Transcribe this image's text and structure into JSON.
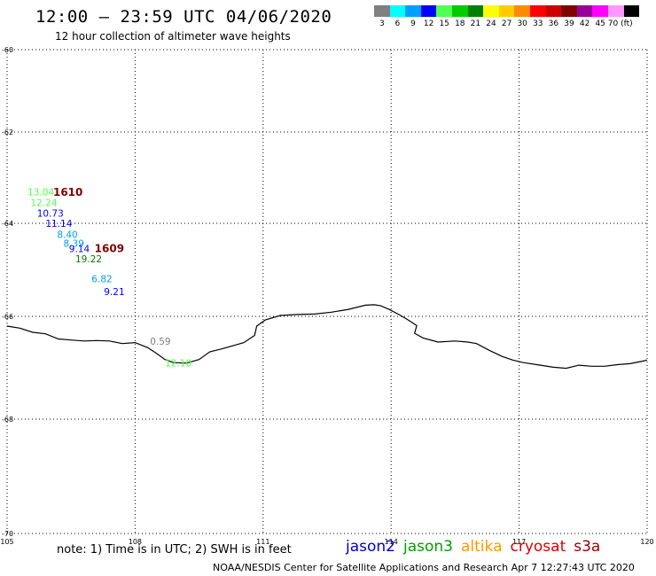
{
  "header": {
    "title": "12:00 – 23:59 UTC 04/06/2020",
    "subtitle": "12 hour collection of altimeter wave heights"
  },
  "legend": {
    "colors": [
      "#808080",
      "#00ffff",
      "#00a0ff",
      "#0000ff",
      "#50ff50",
      "#00cc00",
      "#008000",
      "#ffff00",
      "#ffcc00",
      "#ff8c00",
      "#ff0000",
      "#cc0000",
      "#800000",
      "#990099",
      "#ff00ff",
      "#ff99ff",
      "#000000"
    ],
    "labels": [
      "3",
      "6",
      "9",
      "12",
      "15",
      "18",
      "21",
      "24",
      "27",
      "30",
      "33",
      "36",
      "39",
      "42",
      "45",
      "70 (ft)"
    ],
    "unit": "(ft)"
  },
  "map": {
    "lon_ticks": [
      "105",
      "108",
      "111",
      "114",
      "117",
      "120"
    ],
    "lat_ticks": [
      "-60",
      "-62",
      "-64",
      "-66",
      "-68",
      "-70"
    ],
    "lon_range": [
      105,
      120
    ],
    "lat_range": [
      -60,
      -70
    ],
    "grid": "dotted",
    "observations": [
      {
        "text": "13.04",
        "lon": 105.48,
        "lat": -63.39,
        "color": "#50ff50"
      },
      {
        "text": "12.24",
        "lon": 105.55,
        "lat": -63.62,
        "color": "#50ff50"
      },
      {
        "text": "10.73",
        "lon": 105.7,
        "lat": -63.85,
        "color": "#0000ff"
      },
      {
        "text": "11.14",
        "lon": 105.9,
        "lat": -64.08,
        "color": "#0000ff"
      },
      {
        "text": "8.40",
        "lon": 106.17,
        "lat": -64.31,
        "color": "#00a0ff"
      },
      {
        "text": "8.39",
        "lon": 106.32,
        "lat": -64.5,
        "color": "#00a0ff"
      },
      {
        "text": "9.14",
        "lon": 106.45,
        "lat": -64.62,
        "color": "#0000ff"
      },
      {
        "text": "19.22",
        "lon": 106.6,
        "lat": -64.84,
        "color": "#008000"
      },
      {
        "text": "6.82",
        "lon": 106.98,
        "lat": -65.27,
        "color": "#00a0ff"
      },
      {
        "text": "9.21",
        "lon": 107.27,
        "lat": -65.54,
        "color": "#0000ff"
      },
      {
        "text": "0.59",
        "lon": 108.35,
        "lat": -66.55,
        "color": "#808080"
      },
      {
        "text": "12.10",
        "lon": 108.7,
        "lat": -66.97,
        "color": "#50ff50"
      }
    ],
    "tracks": [
      {
        "text": "1610",
        "lon": 106.08,
        "lat": -63.4,
        "color": "#800000"
      },
      {
        "text": "1609",
        "lon": 107.05,
        "lat": -64.62,
        "color": "#800000"
      }
    ],
    "coastline": [
      [
        105.0,
        -66.19
      ],
      [
        105.3,
        -66.23
      ],
      [
        105.6,
        -66.31
      ],
      [
        105.9,
        -66.34
      ],
      [
        106.2,
        -66.44
      ],
      [
        106.5,
        -66.46
      ],
      [
        106.8,
        -66.48
      ],
      [
        107.1,
        -66.47
      ],
      [
        107.4,
        -66.48
      ],
      [
        107.7,
        -66.53
      ],
      [
        108.0,
        -66.51
      ],
      [
        108.12,
        -66.55
      ],
      [
        108.3,
        -66.61
      ],
      [
        108.5,
        -66.72
      ],
      [
        108.7,
        -66.84
      ],
      [
        108.9,
        -66.9
      ],
      [
        109.2,
        -66.91
      ],
      [
        109.5,
        -66.84
      ],
      [
        109.75,
        -66.69
      ],
      [
        110.0,
        -66.64
      ],
      [
        110.3,
        -66.57
      ],
      [
        110.55,
        -66.51
      ],
      [
        110.8,
        -66.37
      ],
      [
        110.85,
        -66.19
      ],
      [
        111.05,
        -66.07
      ],
      [
        111.4,
        -65.98
      ],
      [
        111.8,
        -65.96
      ],
      [
        112.2,
        -65.95
      ],
      [
        112.6,
        -65.91
      ],
      [
        113.0,
        -65.85
      ],
      [
        113.4,
        -65.76
      ],
      [
        113.6,
        -65.75
      ],
      [
        113.75,
        -65.77
      ],
      [
        113.95,
        -65.85
      ],
      [
        114.2,
        -65.97
      ],
      [
        114.4,
        -66.07
      ],
      [
        114.6,
        -66.18
      ],
      [
        114.55,
        -66.33
      ],
      [
        114.75,
        -66.42
      ],
      [
        115.1,
        -66.5
      ],
      [
        115.5,
        -66.48
      ],
      [
        115.8,
        -66.5
      ],
      [
        116.0,
        -66.53
      ],
      [
        116.3,
        -66.66
      ],
      [
        116.6,
        -66.78
      ],
      [
        116.85,
        -66.85
      ],
      [
        117.1,
        -66.9
      ],
      [
        117.5,
        -66.95
      ],
      [
        117.8,
        -66.99
      ],
      [
        118.1,
        -67.01
      ],
      [
        118.4,
        -66.95
      ],
      [
        118.7,
        -66.97
      ],
      [
        119.0,
        -66.97
      ],
      [
        119.3,
        -66.94
      ],
      [
        119.6,
        -66.92
      ],
      [
        119.9,
        -66.87
      ],
      [
        120.0,
        -66.85
      ]
    ]
  },
  "footer": {
    "note": "note: 1) Time is in UTC; 2) SWH is in feet",
    "satellites": [
      {
        "name": "jason2",
        "color": "#0000cc"
      },
      {
        "name": "jason3",
        "color": "#00a000"
      },
      {
        "name": "altika",
        "color": "#ff9900"
      },
      {
        "name": "cryosat",
        "color": "#dd0000"
      },
      {
        "name": "s3a",
        "color": "#990000"
      }
    ],
    "credit": "NOAA/NESDIS Center for Satellite Applications and Research   Apr  7 12:27:43 UTC 2020"
  }
}
